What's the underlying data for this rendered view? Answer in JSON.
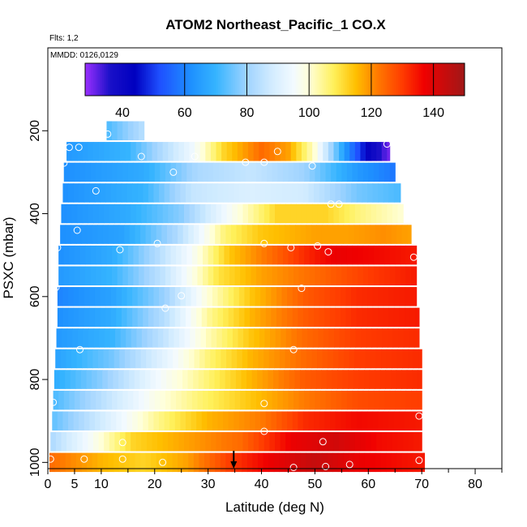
{
  "chart_data": {
    "type": "heatmap",
    "title": "ATOM2 Northeast_Pacific_1 CO.X",
    "subtitle_flights": "Flts: 1,2",
    "subtitle_dates": "MMDD: 0126,0129",
    "xlabel": "Latitude (deg N)",
    "ylabel": "PSXC (mbar)",
    "xlim": [
      0,
      85
    ],
    "ylim": [
      1015,
      0
    ],
    "x_ticks_major": [
      0,
      10,
      20,
      30,
      40,
      50,
      60,
      70,
      80
    ],
    "x_ticks_minor": [
      5
    ],
    "y_ticks": [
      200,
      400,
      600,
      800,
      1000
    ],
    "colorbar": {
      "range": [
        28,
        150
      ],
      "ticks": [
        40,
        60,
        80,
        100,
        120,
        140
      ],
      "breaks": [
        60,
        80,
        100,
        120,
        140
      ],
      "stops": [
        {
          "v": 28,
          "c": "#9b30ff"
        },
        {
          "v": 36,
          "c": "#1a10c8"
        },
        {
          "v": 44,
          "c": "#0000c0"
        },
        {
          "v": 52,
          "c": "#1f50ff"
        },
        {
          "v": 62,
          "c": "#1e90ff"
        },
        {
          "v": 70,
          "c": "#35b4ff"
        },
        {
          "v": 80,
          "c": "#9fd3ff"
        },
        {
          "v": 88,
          "c": "#d2ecff"
        },
        {
          "v": 95,
          "c": "#f3faff"
        },
        {
          "v": 100,
          "c": "#ffffd8"
        },
        {
          "v": 108,
          "c": "#fff05a"
        },
        {
          "v": 115,
          "c": "#ffbf00"
        },
        {
          "v": 122,
          "c": "#ff7a00"
        },
        {
          "v": 130,
          "c": "#ff3c00"
        },
        {
          "v": 137,
          "c": "#f00000"
        },
        {
          "v": 150,
          "c": "#a01818"
        }
      ]
    },
    "rows": [
      {
        "p": 200,
        "x0": 11,
        "x1": 18,
        "anchors": [
          [
            11,
            72
          ],
          [
            18,
            84
          ]
        ]
      },
      {
        "p": 250,
        "x0": 3.5,
        "x1": 64,
        "anchors": [
          [
            3.5,
            64
          ],
          [
            15,
            70
          ],
          [
            27,
            94
          ],
          [
            33,
            112
          ],
          [
            40,
            124
          ],
          [
            45,
            118
          ],
          [
            50,
            100
          ],
          [
            56,
            62
          ],
          [
            60,
            42
          ],
          [
            64,
            30
          ]
        ]
      },
      {
        "p": 300,
        "x0": 3,
        "x1": 65,
        "anchors": [
          [
            3,
            62
          ],
          [
            18,
            68
          ],
          [
            28,
            82
          ],
          [
            38,
            86
          ],
          [
            48,
            80
          ],
          [
            58,
            64
          ],
          [
            65,
            58
          ]
        ]
      },
      {
        "p": 350,
        "x0": 2.8,
        "x1": 66,
        "anchors": [
          [
            2.8,
            62
          ],
          [
            18,
            70
          ],
          [
            27,
            86
          ],
          [
            38,
            90
          ],
          [
            48,
            88
          ],
          [
            58,
            76
          ],
          [
            66,
            72
          ]
        ]
      },
      {
        "p": 400,
        "x0": 2.5,
        "x1": 66.5,
        "anchors": [
          [
            2.5,
            62
          ],
          [
            15,
            68
          ],
          [
            25,
            78
          ],
          [
            35,
            98
          ],
          [
            43,
            112
          ],
          [
            52,
            112
          ],
          [
            58,
            106
          ],
          [
            66.5,
            100
          ]
        ]
      },
      {
        "p": 450,
        "x0": 2.3,
        "x1": 68,
        "anchors": [
          [
            2.3,
            62
          ],
          [
            14,
            66
          ],
          [
            24,
            82
          ],
          [
            33,
            106
          ],
          [
            40,
            114
          ],
          [
            50,
            118
          ],
          [
            56,
            118
          ],
          [
            63,
            120
          ],
          [
            68,
            118
          ]
        ]
      },
      {
        "p": 500,
        "x0": 2,
        "x1": 69,
        "anchors": [
          [
            2,
            62
          ],
          [
            12,
            68
          ],
          [
            20,
            82
          ],
          [
            27,
            96
          ],
          [
            34,
            114
          ],
          [
            42,
            124
          ],
          [
            48,
            132
          ],
          [
            54,
            138
          ],
          [
            62,
            136
          ],
          [
            69,
            134
          ]
        ]
      },
      {
        "p": 550,
        "x0": 2,
        "x1": 69,
        "anchors": [
          [
            2,
            64
          ],
          [
            12,
            70
          ],
          [
            22,
            86
          ],
          [
            32,
            110
          ],
          [
            40,
            118
          ],
          [
            50,
            124
          ],
          [
            60,
            130
          ],
          [
            69,
            134
          ]
        ]
      },
      {
        "p": 600,
        "x0": 1.8,
        "x1": 69,
        "anchors": [
          [
            1.8,
            60
          ],
          [
            12,
            66
          ],
          [
            22,
            80
          ],
          [
            30,
            100
          ],
          [
            38,
            114
          ],
          [
            48,
            126
          ],
          [
            58,
            132
          ],
          [
            69,
            134
          ]
        ]
      },
      {
        "p": 650,
        "x0": 1.8,
        "x1": 69.5,
        "anchors": [
          [
            1.8,
            62
          ],
          [
            12,
            68
          ],
          [
            22,
            84
          ],
          [
            30,
            104
          ],
          [
            38,
            116
          ],
          [
            48,
            126
          ],
          [
            58,
            132
          ],
          [
            69.5,
            134
          ]
        ]
      },
      {
        "p": 700,
        "x0": 1.6,
        "x1": 69.5,
        "anchors": [
          [
            1.6,
            64
          ],
          [
            12,
            70
          ],
          [
            22,
            86
          ],
          [
            30,
            102
          ],
          [
            38,
            114
          ],
          [
            48,
            124
          ],
          [
            58,
            130
          ],
          [
            69.5,
            132
          ]
        ]
      },
      {
        "p": 750,
        "x0": 1.4,
        "x1": 70,
        "anchors": [
          [
            1.4,
            66
          ],
          [
            12,
            76
          ],
          [
            22,
            92
          ],
          [
            30,
            106
          ],
          [
            38,
            116
          ],
          [
            48,
            124
          ],
          [
            58,
            130
          ],
          [
            70,
            132
          ]
        ]
      },
      {
        "p": 800,
        "x0": 1.2,
        "x1": 70,
        "anchors": [
          [
            1.2,
            68
          ],
          [
            10,
            78
          ],
          [
            20,
            94
          ],
          [
            28,
            104
          ],
          [
            38,
            116
          ],
          [
            48,
            126
          ],
          [
            58,
            130
          ],
          [
            70,
            132
          ]
        ]
      },
      {
        "p": 850,
        "x0": 1,
        "x1": 70,
        "anchors": [
          [
            1,
            72
          ],
          [
            10,
            84
          ],
          [
            20,
            98
          ],
          [
            28,
            106
          ],
          [
            38,
            114
          ],
          [
            48,
            122
          ],
          [
            58,
            128
          ],
          [
            70,
            130
          ]
        ]
      },
      {
        "p": 900,
        "x0": 0.8,
        "x1": 70,
        "anchors": [
          [
            0.8,
            74
          ],
          [
            10,
            88
          ],
          [
            20,
            104
          ],
          [
            30,
            116
          ],
          [
            40,
            122
          ],
          [
            48,
            132
          ],
          [
            58,
            136
          ],
          [
            70,
            134
          ]
        ]
      },
      {
        "p": 950,
        "x0": 0.5,
        "x1": 70,
        "anchors": [
          [
            0.5,
            82
          ],
          [
            8,
            96
          ],
          [
            16,
            112
          ],
          [
            26,
            118
          ],
          [
            36,
            124
          ],
          [
            46,
            138
          ],
          [
            54,
            142
          ],
          [
            62,
            136
          ],
          [
            70,
            134
          ]
        ]
      },
      {
        "p": 1000,
        "x0": 0.3,
        "x1": 70.5,
        "anchors": [
          [
            0.3,
            124
          ],
          [
            10,
            116
          ],
          [
            18,
            112
          ],
          [
            26,
            118
          ],
          [
            34,
            130
          ],
          [
            42,
            138
          ],
          [
            50,
            144
          ],
          [
            58,
            138
          ],
          [
            70.5,
            134
          ]
        ]
      }
    ],
    "points": [
      [
        11.2,
        208
      ],
      [
        4,
        240
      ],
      [
        5.8,
        240
      ],
      [
        17.5,
        262
      ],
      [
        27.5,
        262
      ],
      [
        37,
        276
      ],
      [
        40.5,
        276
      ],
      [
        43,
        250
      ],
      [
        49.5,
        285
      ],
      [
        63.5,
        232
      ],
      [
        3,
        278
      ],
      [
        23.5,
        300
      ],
      [
        9,
        345
      ],
      [
        53,
        377
      ],
      [
        54.5,
        377
      ],
      [
        5.5,
        440
      ],
      [
        1.8,
        482
      ],
      [
        13.5,
        487
      ],
      [
        20.5,
        472
      ],
      [
        40.5,
        472
      ],
      [
        45.5,
        482
      ],
      [
        50.5,
        478
      ],
      [
        52.5,
        492
      ],
      [
        68.5,
        505
      ],
      [
        1.5,
        578
      ],
      [
        25,
        598
      ],
      [
        22,
        628
      ],
      [
        47.5,
        580
      ],
      [
        6,
        728
      ],
      [
        46,
        728
      ],
      [
        1,
        855
      ],
      [
        40.5,
        858
      ],
      [
        69.5,
        888
      ],
      [
        40.5,
        925
      ],
      [
        14,
        952
      ],
      [
        51.5,
        950
      ],
      [
        0.5,
        992
      ],
      [
        6.8,
        992
      ],
      [
        14,
        992
      ],
      [
        21.5,
        1000
      ],
      [
        46,
        1012
      ],
      [
        52,
        1010
      ],
      [
        56.5,
        1005
      ],
      [
        69.5,
        995
      ]
    ],
    "arrow_latitude": 34.8
  }
}
